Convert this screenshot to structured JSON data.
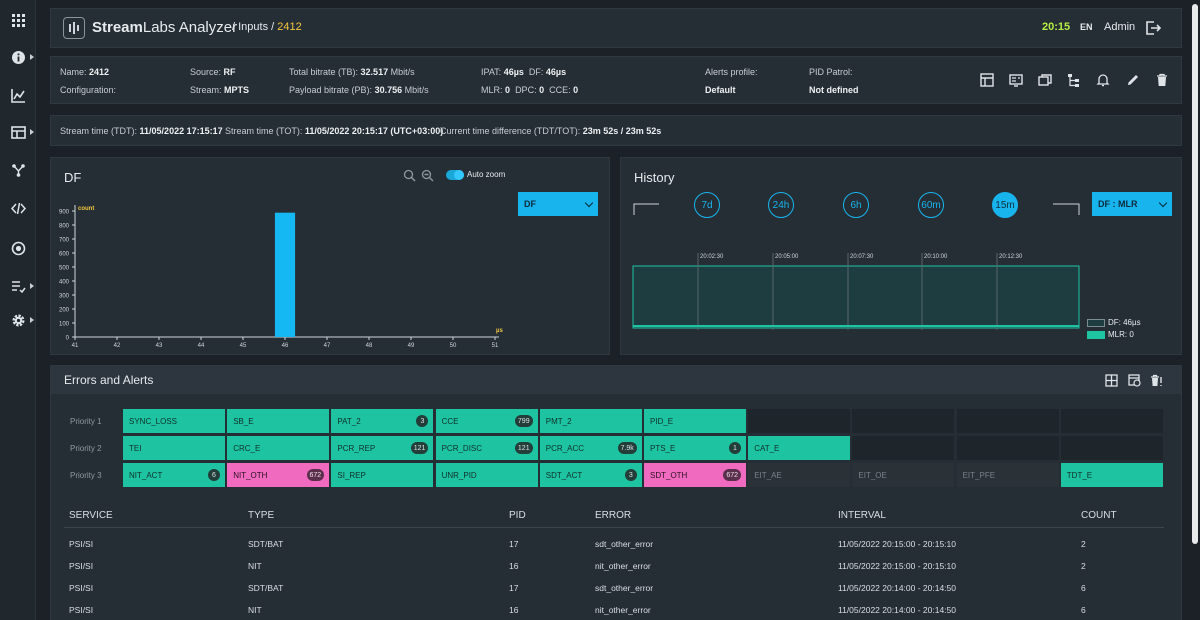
{
  "app": {
    "brand_prefix": "Stream",
    "brand_mid": "Labs",
    "brand_suffix": " Analyzer",
    "breadcrumb_sep1": "/ Inputs /",
    "breadcrumb_current": "2412",
    "time": "20:15",
    "lang": "EN",
    "user": "Admin"
  },
  "sidebar": {
    "items": [
      {
        "icon": "grid-icon"
      },
      {
        "icon": "info-icon"
      },
      {
        "icon": "chart-icon"
      },
      {
        "icon": "table-icon"
      },
      {
        "icon": "network-icon"
      },
      {
        "icon": "code-icon"
      },
      {
        "icon": "record-icon"
      },
      {
        "icon": "checklist-icon"
      },
      {
        "icon": "gear-icon"
      }
    ]
  },
  "info": {
    "name_label": "Name:",
    "name": "2412",
    "config_label": "Configuration:",
    "source_label": "Source:",
    "source": "RF",
    "stream_label": "Stream:",
    "stream": "MPTS",
    "tb_label": "Total bitrate (TB):",
    "tb": "32.517",
    "tb_unit": "Mbit/s",
    "pb_label": "Payload bitrate (PB):",
    "pb": "30.756",
    "pb_unit": "Mbit/s",
    "ipat_label": "IPAT:",
    "ipat": "46µs",
    "df_label": "DF:",
    "df": "46µs",
    "mlr_label": "MLR:",
    "mlr": "0",
    "dpc_label": "DPC:",
    "dpc": "0",
    "cce_label": "CCE:",
    "cce": "0",
    "alerts_label": "Alerts profile:",
    "alerts": "Default",
    "pid_label": "PID Patrol:",
    "pid": "Not defined"
  },
  "streamtime": {
    "tdt_label": "Stream time (TDT):",
    "tdt": "11/05/2022 17:15:17",
    "tot_label": "Stream time (TOT):",
    "tot": "11/05/2022 20:15:17 (UTC+03:00)",
    "diff_label": "Current time difference (TDT/TOT):",
    "diff": "23m 52s / 23m 52s"
  },
  "df_panel": {
    "title": "DF",
    "auto_zoom": "Auto zoom",
    "select": "DF"
  },
  "chart_data": {
    "type": "bar",
    "title": "",
    "ylabel": "count",
    "xlabel": "µs",
    "x_ticks": [
      "41",
      "42",
      "43",
      "44",
      "45",
      "46",
      "47",
      "48",
      "49",
      "50",
      "51"
    ],
    "y_ticks": [
      "0",
      "100",
      "200",
      "300",
      "400",
      "500",
      "600",
      "700",
      "800",
      "900"
    ],
    "ylim": [
      0,
      900
    ],
    "xlim": [
      41,
      51
    ],
    "bars": [
      {
        "x": 46,
        "value": 888
      }
    ],
    "grid": false
  },
  "history": {
    "title": "History",
    "ranges": [
      "7d",
      "24h",
      "6h",
      "60m",
      "15m"
    ],
    "active_range": "15m",
    "select": "DF : MLR",
    "time_ticks": [
      "20:02:30",
      "20:05:00",
      "20:07:30",
      "20:10:00",
      "20:12:30"
    ],
    "legend": [
      {
        "label": "DF: 46µs",
        "color": "#1e3d41"
      },
      {
        "label": "MLR: 0",
        "color": "#1ec3a2"
      }
    ]
  },
  "errors": {
    "title": "Errors and Alerts",
    "priorities": [
      "Priority 1",
      "Priority 2",
      "Priority 3"
    ],
    "rows": [
      [
        {
          "label": "SYNC_LOSS",
          "state": "g"
        },
        {
          "label": "SB_E",
          "state": "g"
        },
        {
          "label": "PAT_2",
          "state": "g",
          "count": "3"
        },
        {
          "label": "CCE",
          "state": "g",
          "count": "799"
        },
        {
          "label": "PMT_2",
          "state": "g"
        },
        {
          "label": "PID_E",
          "state": "g"
        },
        {
          "label": "",
          "state": "d"
        },
        {
          "label": "",
          "state": "d"
        },
        {
          "label": "",
          "state": "d"
        },
        {
          "label": "",
          "state": "d"
        }
      ],
      [
        {
          "label": "TEI",
          "state": "g"
        },
        {
          "label": "CRC_E",
          "state": "g"
        },
        {
          "label": "PCR_REP",
          "state": "g",
          "count": "121"
        },
        {
          "label": "PCR_DISC",
          "state": "g",
          "count": "121"
        },
        {
          "label": "PCR_ACC",
          "state": "g",
          "count": "7.9k"
        },
        {
          "label": "PTS_E",
          "state": "g",
          "count": "1"
        },
        {
          "label": "CAT_E",
          "state": "g"
        },
        {
          "label": "",
          "state": "d"
        },
        {
          "label": "",
          "state": "d"
        },
        {
          "label": "",
          "state": "d"
        }
      ],
      [
        {
          "label": "NIT_ACT",
          "state": "g",
          "count": "6"
        },
        {
          "label": "NIT_OTH",
          "state": "p",
          "count": "672"
        },
        {
          "label": "SI_REP",
          "state": "g"
        },
        {
          "label": "UNR_PID",
          "state": "g"
        },
        {
          "label": "SDT_ACT",
          "state": "g",
          "count": "3"
        },
        {
          "label": "SDT_OTH",
          "state": "p",
          "count": "672"
        },
        {
          "label": "EIT_AE",
          "state": "dt"
        },
        {
          "label": "EIT_OE",
          "state": "dt"
        },
        {
          "label": "EIT_PFE",
          "state": "dt"
        },
        {
          "label": "TDT_E",
          "state": "g"
        }
      ]
    ],
    "table_headers": [
      "SERVICE",
      "TYPE",
      "PID",
      "ERROR",
      "INTERVAL",
      "COUNT"
    ],
    "table_rows": [
      [
        "PSI/SI",
        "SDT/BAT",
        "17",
        "sdt_other_error",
        "11/05/2022 20:15:00 - 20:15:10",
        "2"
      ],
      [
        "PSI/SI",
        "NIT",
        "16",
        "nit_other_error",
        "11/05/2022 20:15:00 - 20:15:10",
        "2"
      ],
      [
        "PSI/SI",
        "SDT/BAT",
        "17",
        "sdt_other_error",
        "11/05/2022 20:14:00 - 20:14:50",
        "6"
      ],
      [
        "PSI/SI",
        "NIT",
        "16",
        "nit_other_error",
        "11/05/2022 20:14:00 - 20:14:50",
        "6"
      ]
    ]
  }
}
